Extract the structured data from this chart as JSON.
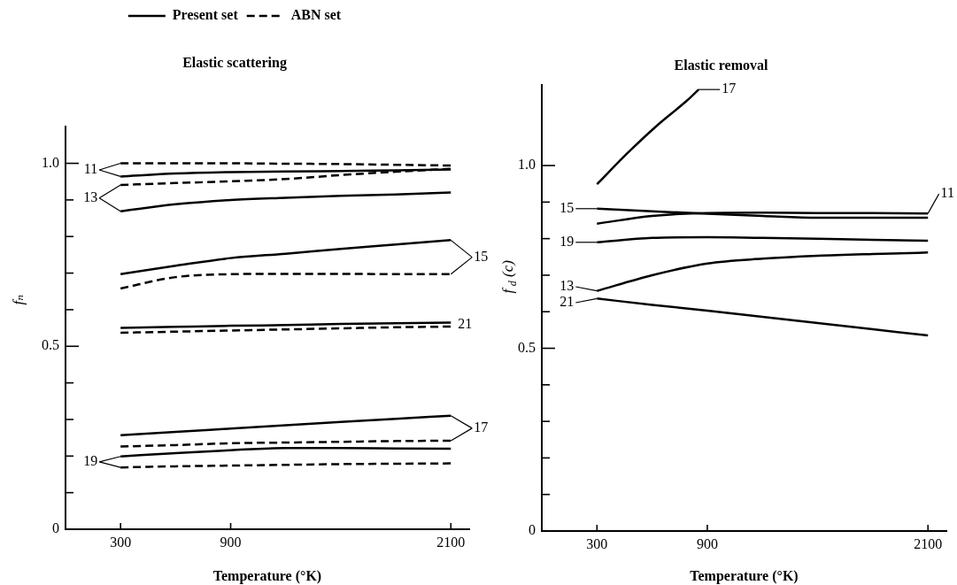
{
  "chart_data": [
    {
      "type": "line",
      "title": "Elastic scattering",
      "xlabel": "Temperature (°K)",
      "ylabel": "fₙ",
      "legend": "top",
      "marker": "none",
      "xlim": [
        0,
        2200
      ],
      "xticks": [
        300,
        900,
        2100
      ],
      "ylim": [
        0,
        1.1
      ],
      "yticks": [
        {
          "value": 0,
          "label": "0"
        },
        {
          "value": 0.1,
          "label": null
        },
        {
          "value": 0.2,
          "label": null
        },
        {
          "value": 0.3,
          "label": null
        },
        {
          "value": 0.4,
          "label": null
        },
        {
          "value": 0.5,
          "label": "0.5"
        },
        {
          "value": 0.6,
          "label": null
        },
        {
          "value": 0.7,
          "label": null
        },
        {
          "value": 0.8,
          "label": null
        },
        {
          "value": 0.9,
          "label": null
        },
        {
          "value": 1,
          "label": "1.0"
        }
      ],
      "x": [
        300,
        600,
        900,
        1200,
        1500,
        1800,
        2100,
        null,
        300,
        600,
        900,
        1200,
        1500,
        1800,
        2100,
        null,
        300,
        600,
        900,
        1200,
        1500,
        1800,
        2100,
        null,
        300,
        600,
        900,
        1200,
        1500,
        1800,
        2100,
        null,
        300,
        600,
        900,
        1200,
        1500,
        1800,
        2100,
        null,
        300,
        600,
        900,
        1200,
        1500,
        1800,
        2100
      ],
      "series": [
        {
          "name": "Present set",
          "color": "#000000",
          "line_style": "solid",
          "values": [
            0.964,
            0.972,
            0.976,
            0.978,
            0.979,
            0.981,
            0.983,
            null,
            0.869,
            0.888,
            0.9,
            0.906,
            0.911,
            0.915,
            0.92,
            null,
            0.697,
            0.72,
            0.741,
            0.753,
            0.766,
            0.778,
            0.79,
            null,
            0.55,
            0.553,
            0.556,
            0.558,
            0.561,
            0.563,
            0.565,
            null,
            0.257,
            0.266,
            0.275,
            0.284,
            0.293,
            0.302,
            0.31,
            null,
            0.199,
            0.208,
            0.216,
            0.222,
            0.222,
            0.221,
            0.22
          ]
        },
        {
          "name": "ABN set",
          "color": "#000000",
          "line_style": "dashed",
          "values": [
            1.0,
            1.0,
            1.0,
            0.999,
            0.998,
            0.996,
            0.994,
            null,
            0.941,
            0.946,
            0.951,
            0.957,
            0.968,
            0.977,
            0.985,
            null,
            0.658,
            0.689,
            0.697,
            0.698,
            0.698,
            0.697,
            0.697,
            null,
            0.537,
            0.54,
            0.543,
            0.546,
            0.549,
            0.552,
            0.554,
            null,
            0.226,
            0.23,
            0.235,
            0.237,
            0.239,
            0.241,
            0.242,
            null,
            0.169,
            0.172,
            0.174,
            0.176,
            0.178,
            0.179,
            0.18
          ]
        }
      ],
      "annotations": [
        {
          "text": "11",
          "x": 300,
          "y": 1.0
        },
        {
          "text": "13",
          "x": 300,
          "y": 0.869
        },
        {
          "text": "15",
          "x": 2100,
          "y": 0.79
        },
        {
          "text": "21",
          "x": 2100,
          "y": 0.565
        },
        {
          "text": "17",
          "x": 2100,
          "y": 0.31
        },
        {
          "text": "19",
          "x": 300,
          "y": 0.169
        }
      ]
    },
    {
      "type": "line",
      "title": "Elastic removal",
      "xlabel": "Temperature (°K)",
      "ylabel": "f$_{d}$ (c)",
      "marker": "none",
      "line_style": "solid",
      "xlim": [
        0,
        2200
      ],
      "xticks": [
        300,
        900,
        2100
      ],
      "ylim": [
        0,
        1.22
      ],
      "yticks": [
        {
          "value": 0,
          "label": "0"
        },
        {
          "value": 0.1,
          "label": null
        },
        {
          "value": 0.2,
          "label": null
        },
        {
          "value": 0.3,
          "label": null
        },
        {
          "value": 0.4,
          "label": null
        },
        {
          "value": 0.5,
          "label": "0.5"
        },
        {
          "value": 0.6,
          "label": null
        },
        {
          "value": 0.7,
          "label": null
        },
        {
          "value": 0.8,
          "label": null
        },
        {
          "value": 0.9,
          "label": null
        },
        {
          "value": 1,
          "label": "1.0"
        }
      ],
      "x": [
        300,
        600,
        900,
        1200,
        1500,
        1800,
        2100
      ],
      "series": [
        {
          "color": "#000000",
          "x": [
            300,
            470,
            630,
            790,
            853
          ],
          "values": [
            0.949,
            1.036,
            1.111,
            1.178,
            1.208
          ]
        },
        {
          "color": "#000000",
          "values": [
            0.882,
            0.875,
            0.868,
            0.862,
            0.857,
            0.857,
            0.857
          ]
        },
        {
          "color": "#000000",
          "values": [
            0.841,
            0.862,
            0.87,
            0.871,
            0.87,
            0.87,
            0.869
          ]
        },
        {
          "color": "#000000",
          "values": [
            0.79,
            0.802,
            0.804,
            0.802,
            0.8,
            0.797,
            0.794
          ]
        },
        {
          "color": "#000000",
          "values": [
            0.657,
            0.7,
            0.732,
            0.745,
            0.753,
            0.758,
            0.762
          ]
        },
        {
          "color": "#000000",
          "values": [
            0.636,
            0.619,
            0.603,
            0.586,
            0.569,
            0.552,
            0.535
          ]
        }
      ],
      "annotations": [
        {
          "text": "17",
          "x": 853,
          "y": 1.208
        },
        {
          "text": "11",
          "x": 2100,
          "y": 0.869
        },
        {
          "text": "15",
          "x": 300,
          "y": 0.882
        },
        {
          "text": "19",
          "x": 300,
          "y": 0.79
        },
        {
          "text": "13",
          "x": 300,
          "y": 0.657
        },
        {
          "text": "21",
          "x": 300,
          "y": 0.636
        }
      ]
    }
  ]
}
